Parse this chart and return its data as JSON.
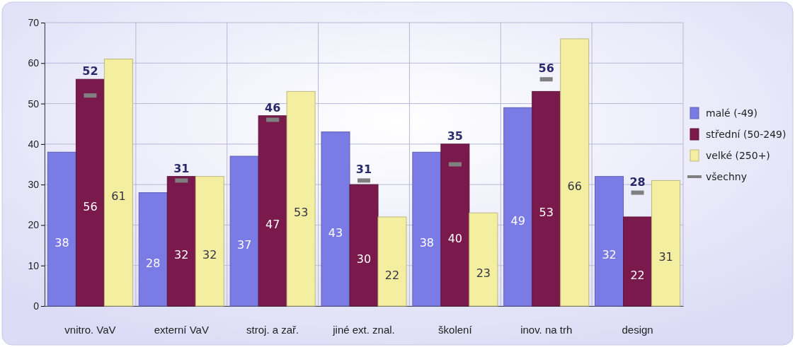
{
  "chart_data": {
    "type": "bar",
    "categories": [
      "vnitro. VaV",
      "externí VaV",
      "stroj. a zař.",
      "jiné ext. znal.",
      "školení",
      "inov. na trh",
      "design"
    ],
    "series": [
      {
        "name": "malé (-49)",
        "color": "#7b7be6",
        "values": [
          38,
          28,
          37,
          43,
          38,
          49,
          32
        ]
      },
      {
        "name": "střední (50-249)",
        "color": "#7a1a4c",
        "values": [
          56,
          32,
          47,
          30,
          40,
          53,
          22
        ]
      },
      {
        "name": "velké (250+)",
        "color": "#f3eea0",
        "values": [
          61,
          32,
          53,
          22,
          23,
          66,
          31
        ]
      },
      {
        "name": "všechny",
        "type": "scatter",
        "color": "#808080",
        "values": [
          52,
          31,
          46,
          31,
          35,
          56,
          28
        ]
      }
    ],
    "ylim": [
      0,
      70
    ],
    "yticks": [
      0,
      10,
      20,
      30,
      40,
      50,
      60,
      70
    ],
    "grid": true,
    "legend": "right",
    "data_labels": true
  }
}
